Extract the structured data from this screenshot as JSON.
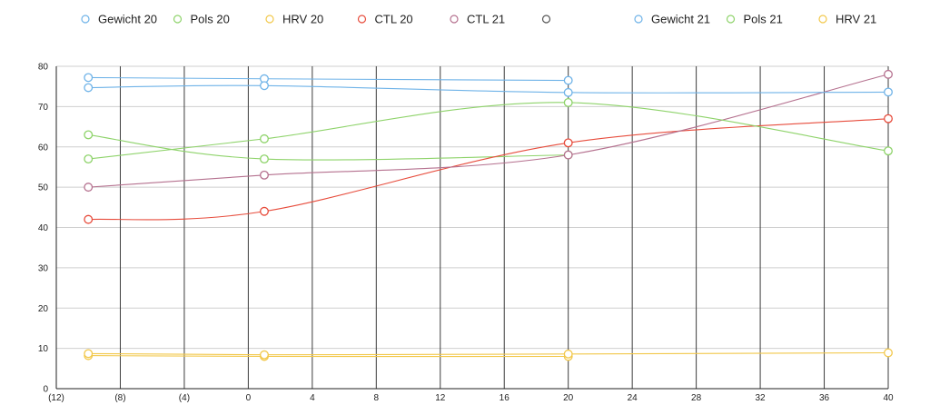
{
  "chart_data": {
    "type": "line",
    "xlim": [
      -12,
      40
    ],
    "ylim": [
      0,
      80
    ],
    "x_ticks": [
      -12,
      -8,
      -4,
      0,
      4,
      8,
      12,
      16,
      20,
      24,
      28,
      32,
      36,
      40
    ],
    "x_tick_labels": [
      "(12)",
      "(8)",
      "(4)",
      "0",
      "4",
      "8",
      "12",
      "16",
      "20",
      "24",
      "28",
      "32",
      "36",
      "40"
    ],
    "y_ticks": [
      0,
      10,
      20,
      30,
      40,
      50,
      60,
      70,
      80
    ],
    "y_tick_labels": [
      "0",
      "10",
      "20",
      "30",
      "40",
      "50",
      "60",
      "70",
      "80"
    ],
    "grid": {
      "horizontal": true,
      "vertical": true
    },
    "legend_position": "top",
    "series": [
      {
        "name": "Gewicht 20",
        "color": "#6fb3e8",
        "points": [
          [
            -10,
            77.2
          ],
          [
            1,
            76.9
          ],
          [
            20,
            76.5
          ]
        ]
      },
      {
        "name": "Pols 20",
        "color": "#8ed36a",
        "points": [
          [
            -10,
            63
          ],
          [
            1,
            57
          ],
          [
            20,
            58
          ]
        ]
      },
      {
        "name": "HRV 20",
        "color": "#f2c84b",
        "points": [
          [
            -10,
            8.2
          ],
          [
            1,
            8.0
          ],
          [
            20,
            8.0
          ]
        ]
      },
      {
        "name": "CTL 20",
        "color": "#e74c3c",
        "points": [
          [
            -10,
            42
          ],
          [
            1,
            44
          ],
          [
            20,
            61
          ],
          [
            40,
            67
          ]
        ]
      },
      {
        "name": "CTL 21",
        "color": "#b5718f",
        "points": [
          [
            -10,
            50
          ],
          [
            1,
            53
          ],
          [
            20,
            58
          ],
          [
            40,
            78
          ]
        ]
      },
      {
        "name": "",
        "color": "#555555",
        "points": []
      },
      {
        "name": "Gewicht 21",
        "color": "#6fb3e8",
        "points": [
          [
            -10,
            74.7
          ],
          [
            1,
            75.2
          ],
          [
            20,
            73.5
          ],
          [
            40,
            73.6
          ]
        ]
      },
      {
        "name": "Pols 21",
        "color": "#8ed36a",
        "points": [
          [
            -10,
            57
          ],
          [
            1,
            62
          ],
          [
            20,
            71
          ],
          [
            40,
            59
          ]
        ]
      },
      {
        "name": "HRV 21",
        "color": "#f2c84b",
        "points": [
          [
            -10,
            8.7
          ],
          [
            1,
            8.4
          ],
          [
            20,
            8.6
          ],
          [
            40,
            8.9
          ]
        ]
      }
    ]
  }
}
